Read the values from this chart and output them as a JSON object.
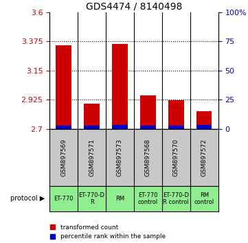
{
  "title": "GDS4474 / 8140498",
  "samples": [
    "GSM897569",
    "GSM897571",
    "GSM897573",
    "GSM897568",
    "GSM897570",
    "GSM897572"
  ],
  "red_values": [
    3.345,
    2.895,
    3.355,
    2.96,
    2.92,
    2.835
  ],
  "blue_values": [
    2.725,
    2.725,
    2.73,
    2.725,
    2.725,
    2.728
  ],
  "ylim_left": [
    2.7,
    3.6
  ],
  "ylim_right": [
    0,
    100
  ],
  "yticks_left": [
    2.7,
    2.925,
    3.15,
    3.375,
    3.6
  ],
  "ytick_labels_left": [
    "2.7",
    "2.925",
    "3.15",
    "3.375",
    "3.6"
  ],
  "yticks_right": [
    0,
    25,
    50,
    75,
    100
  ],
  "ytick_labels_right": [
    "0",
    "25",
    "50",
    "75",
    "100%"
  ],
  "bar_width": 0.55,
  "red_color": "#cc0000",
  "blue_color": "#0000cc",
  "grid_color": "#000000",
  "protocol_labels": [
    "ET-770",
    "ET-770-D\nR",
    "RM",
    "ET-770\ncontrol",
    "ET-770-D\nR control",
    "RM\ncontrol"
  ],
  "protocol_bg": "#90ee90",
  "sample_bg": "#c8c8c8",
  "legend_red": "transformed count",
  "legend_blue": "percentile rank within the sample",
  "protocol_text": "protocol ▶",
  "left_color": "#cc0000",
  "right_color": "#0000cc",
  "title_fontsize": 10,
  "tick_fontsize": 8,
  "sample_fontsize": 6.5,
  "protocol_fontsize": 6.0,
  "legend_fontsize": 6.5
}
